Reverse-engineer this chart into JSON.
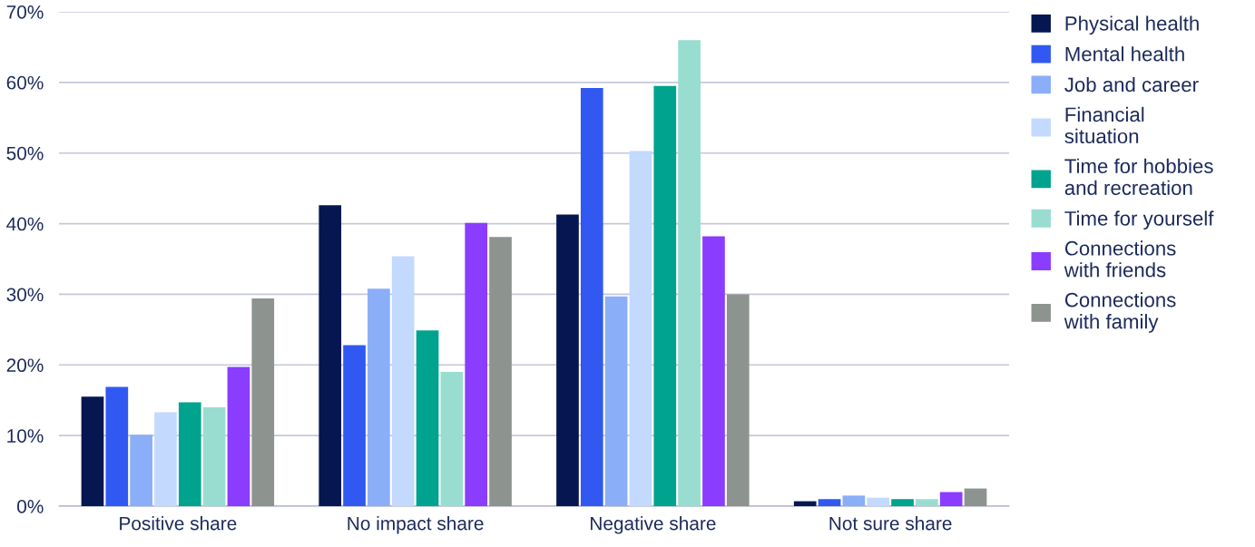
{
  "chart_data": {
    "type": "bar",
    "categories": [
      "Positive share",
      "No impact share",
      "Negative share",
      "Not sure share"
    ],
    "series": [
      {
        "name": "Physical health",
        "color": "#061651",
        "values": [
          15.5,
          42.6,
          41.3,
          0.7
        ]
      },
      {
        "name": "Mental health",
        "color": "#3159f2",
        "values": [
          16.9,
          22.8,
          59.2,
          1.0
        ]
      },
      {
        "name": "Job and career",
        "color": "#8aaef8",
        "values": [
          10.1,
          30.8,
          29.7,
          1.5
        ]
      },
      {
        "name": "Financial\nsituation",
        "color": "#c3d9fe",
        "values": [
          13.3,
          35.4,
          50.3,
          1.2
        ]
      },
      {
        "name": "Time for hobbies\nand recreation",
        "color": "#00a38d",
        "values": [
          14.7,
          24.9,
          59.5,
          1.0
        ]
      },
      {
        "name": "Time for yourself",
        "color": "#98ddd0",
        "values": [
          14.0,
          19.0,
          66.0,
          1.0
        ]
      },
      {
        "name": "Connections\nwith friends",
        "color": "#8a3cff",
        "values": [
          19.7,
          40.1,
          38.2,
          2.0
        ]
      },
      {
        "name": "Connections\nwith family",
        "color": "#8d938f",
        "values": [
          29.4,
          38.1,
          30.0,
          2.5
        ]
      }
    ],
    "ylim": [
      0,
      70
    ],
    "yticks": [
      {
        "value": 0,
        "label": "0%"
      },
      {
        "value": 10,
        "label": "10%"
      },
      {
        "value": 20,
        "label": "20%"
      },
      {
        "value": 30,
        "label": "30%"
      },
      {
        "value": 40,
        "label": "40%"
      },
      {
        "value": 50,
        "label": "50%"
      },
      {
        "value": 60,
        "label": "60%"
      },
      {
        "value": 70,
        "label": "70%"
      }
    ],
    "grid": "y",
    "legend": "top right"
  }
}
